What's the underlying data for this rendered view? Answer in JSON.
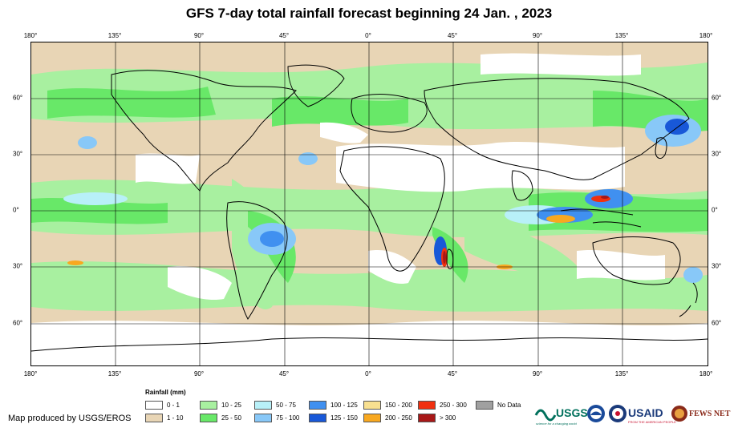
{
  "title": "GFS 7-day total rainfall forecast beginning 24 Jan. , 2023",
  "lon_ticks": [
    "180°",
    "135°",
    "90°",
    "45°",
    "0°",
    "45°",
    "90°",
    "135°",
    "180°"
  ],
  "lat_ticks": [
    "60°",
    "30°",
    "0°",
    "30°",
    "60°"
  ],
  "legend": {
    "title": "Rainfall (mm)",
    "items": [
      {
        "label": "0 - 1",
        "color": "#ffffff"
      },
      {
        "label": "1 - 10",
        "color": "#e8d5b5"
      },
      {
        "label": "10 - 25",
        "color": "#a8f0a0"
      },
      {
        "label": "25 - 50",
        "color": "#68e868"
      },
      {
        "label": "50 - 75",
        "color": "#b8f0f8"
      },
      {
        "label": "75 - 100",
        "color": "#88c8f8"
      },
      {
        "label": "100 - 125",
        "color": "#4090f0"
      },
      {
        "label": "125 - 150",
        "color": "#1858d8"
      },
      {
        "label": "150 - 200",
        "color": "#f8e090"
      },
      {
        "label": "200 - 250",
        "color": "#f8a820"
      },
      {
        "label": "250 - 300",
        "color": "#f03010"
      },
      {
        "label": "> 300",
        "color": "#a81818"
      },
      {
        "label": "No Data",
        "color": "#a0a0a0"
      }
    ]
  },
  "credit": "Map produced by USGS/EROS",
  "logos": {
    "usgs": "USGS",
    "usgs_tagline": "science for a changing world",
    "usaid": "USAID",
    "usaid_tagline": "FROM THE AMERICAN PEOPLE",
    "fewsnet": "FEWS NET"
  }
}
